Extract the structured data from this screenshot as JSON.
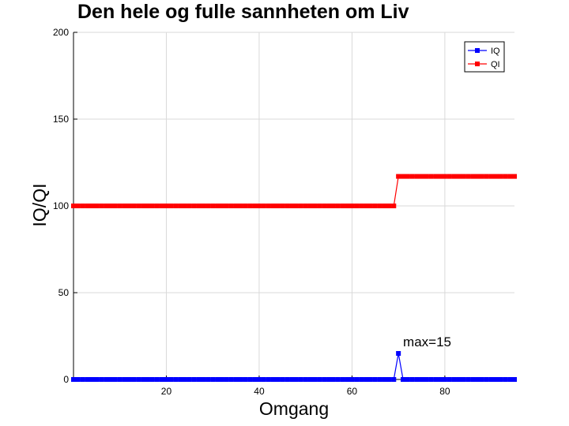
{
  "chart_data": {
    "type": "line",
    "title": "Den hele og fulle sannheten om Liv",
    "xlabel": "Omgang",
    "ylabel": "IQ/QI",
    "xlim": [
      0,
      95
    ],
    "ylim": [
      0,
      200
    ],
    "xticks": [
      20,
      40,
      60,
      80
    ],
    "yticks": [
      0,
      50,
      100,
      150,
      200
    ],
    "grid": true,
    "legend": {
      "position": "top-right",
      "entries": [
        "IQ",
        "QI"
      ]
    },
    "series": [
      {
        "name": "IQ",
        "color": "#0000ff",
        "marker": "square",
        "segments": [
          {
            "x_start": 0,
            "x_end": 69,
            "value": 0
          },
          {
            "x_start": 70,
            "x_end": 70,
            "value": 15
          },
          {
            "x_start": 71,
            "x_end": 95,
            "value": 0
          }
        ]
      },
      {
        "name": "QI",
        "color": "#ff0000",
        "marker": "square",
        "segments": [
          {
            "x_start": 0,
            "x_end": 69,
            "value": 100
          },
          {
            "x_start": 70,
            "x_end": 95,
            "value": 117
          }
        ]
      }
    ],
    "annotations": [
      {
        "text": "max=15",
        "x": 71,
        "y": 19
      }
    ]
  }
}
